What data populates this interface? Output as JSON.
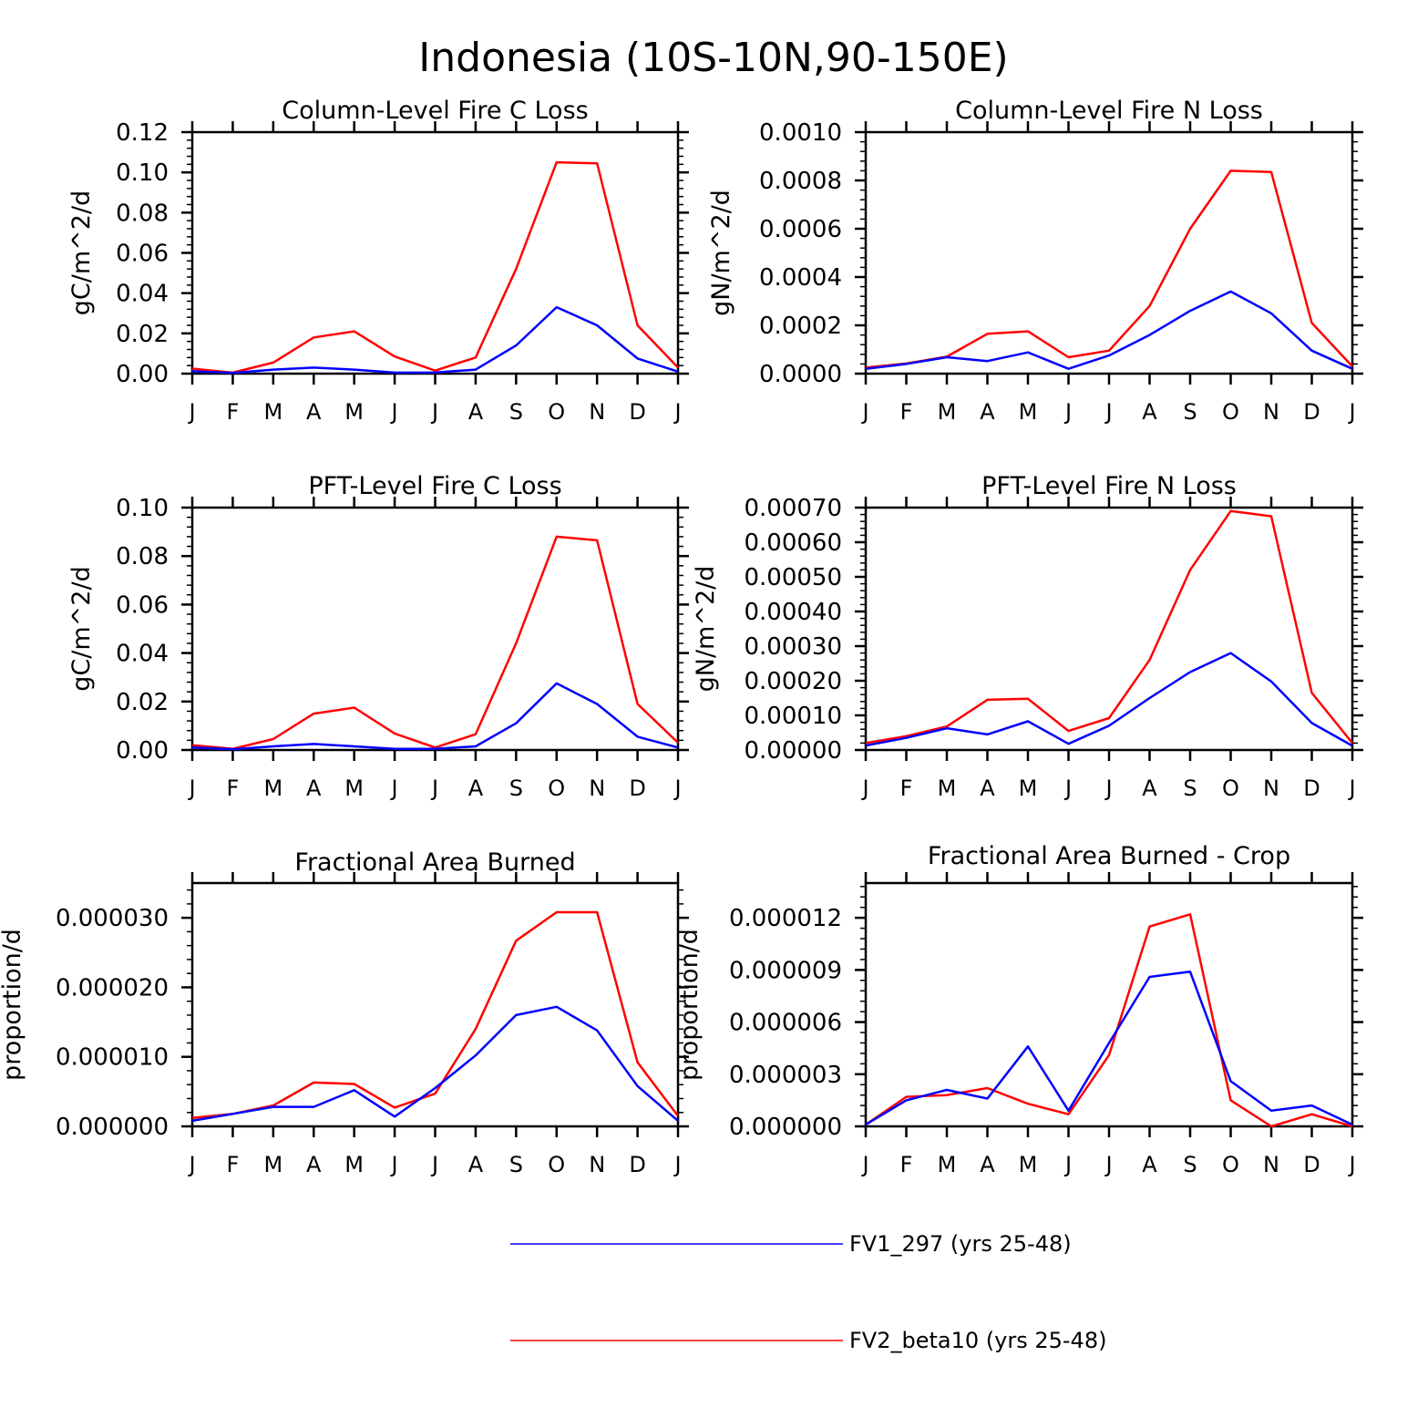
{
  "title": "Indonesia (10S-10N,90-150E)",
  "chart_data": [
    {
      "type": "line",
      "title": "Column-Level Fire C Loss",
      "ylabel": "gC/m^2/d",
      "categories": [
        "J",
        "F",
        "M",
        "A",
        "M",
        "J",
        "J",
        "A",
        "S",
        "O",
        "N",
        "D",
        "J"
      ],
      "ylim": [
        0,
        0.12
      ],
      "yticks": [
        "0.00",
        "0.02",
        "0.04",
        "0.06",
        "0.08",
        "0.10",
        "0.12"
      ],
      "ytick_values": [
        0,
        0.02,
        0.04,
        0.06,
        0.08,
        0.1,
        0.12
      ],
      "series": [
        {
          "name": "FV1_297 (yrs 25-48)",
          "color": "#0000ff",
          "values": [
            0.0012,
            0.0003,
            0.002,
            0.003,
            0.002,
            0.0005,
            0.0006,
            0.002,
            0.014,
            0.033,
            0.024,
            0.0075,
            0.001
          ]
        },
        {
          "name": "FV2_beta10 (yrs 25-48)",
          "color": "#ff0000",
          "values": [
            0.0025,
            0.0005,
            0.0055,
            0.018,
            0.021,
            0.0085,
            0.0015,
            0.008,
            0.052,
            0.105,
            0.1045,
            0.024,
            0.003
          ]
        }
      ]
    },
    {
      "type": "line",
      "title": "Column-Level Fire N Loss",
      "ylabel": "gN/m^2/d",
      "categories": [
        "J",
        "F",
        "M",
        "A",
        "M",
        "J",
        "J",
        "A",
        "S",
        "O",
        "N",
        "D",
        "J"
      ],
      "ylim": [
        0,
        0.001
      ],
      "yticks": [
        "0.0000",
        "0.0002",
        "0.0004",
        "0.0006",
        "0.0008",
        "0.0010"
      ],
      "ytick_values": [
        0,
        0.0002,
        0.0004,
        0.0006,
        0.0008,
        0.001
      ],
      "series": [
        {
          "name": "FV1_297 (yrs 25-48)",
          "color": "#0000ff",
          "values": [
            2e-05,
            4e-05,
            6.8e-05,
            5.2e-05,
            8.8e-05,
            2e-05,
            7.5e-05,
            0.00016,
            0.00026,
            0.00034,
            0.00025,
            9.5e-05,
            2e-05
          ]
        },
        {
          "name": "FV2_beta10 (yrs 25-48)",
          "color": "#ff0000",
          "values": [
            2.5e-05,
            4.2e-05,
            7e-05,
            0.000165,
            0.000175,
            6.8e-05,
            9.5e-05,
            0.00028,
            0.0006,
            0.00084,
            0.000835,
            0.00021,
            3e-05
          ]
        }
      ]
    },
    {
      "type": "line",
      "title": "PFT-Level Fire C Loss",
      "ylabel": "gC/m^2/d",
      "categories": [
        "J",
        "F",
        "M",
        "A",
        "M",
        "J",
        "J",
        "A",
        "S",
        "O",
        "N",
        "D",
        "J"
      ],
      "ylim": [
        0,
        0.1
      ],
      "yticks": [
        "0.00",
        "0.02",
        "0.04",
        "0.06",
        "0.08",
        "0.10"
      ],
      "ytick_values": [
        0,
        0.02,
        0.04,
        0.06,
        0.08,
        0.1
      ],
      "series": [
        {
          "name": "FV1_297 (yrs 25-48)",
          "color": "#0000ff",
          "values": [
            0.001,
            0.0003,
            0.0015,
            0.0025,
            0.0015,
            0.0005,
            0.0005,
            0.0015,
            0.011,
            0.0275,
            0.019,
            0.0055,
            0.001
          ]
        },
        {
          "name": "FV2_beta10 (yrs 25-48)",
          "color": "#ff0000",
          "values": [
            0.002,
            0.0005,
            0.0045,
            0.015,
            0.0175,
            0.0068,
            0.001,
            0.0065,
            0.044,
            0.088,
            0.0865,
            0.019,
            0.003
          ]
        }
      ]
    },
    {
      "type": "line",
      "title": "PFT-Level Fire N Loss",
      "ylabel": "gN/m^2/d",
      "categories": [
        "J",
        "F",
        "M",
        "A",
        "M",
        "J",
        "J",
        "A",
        "S",
        "O",
        "N",
        "D",
        "J"
      ],
      "ylim": [
        0,
        0.0007
      ],
      "yticks": [
        "0.00000",
        "0.00010",
        "0.00020",
        "0.00030",
        "0.00040",
        "0.00050",
        "0.00060",
        "0.00070"
      ],
      "ytick_values": [
        0,
        0.0001,
        0.0002,
        0.0003,
        0.0004,
        0.0005,
        0.0006,
        0.0007
      ],
      "series": [
        {
          "name": "FV1_297 (yrs 25-48)",
          "color": "#0000ff",
          "values": [
            1.3e-05,
            3.5e-05,
            6.3e-05,
            4.5e-05,
            8.3e-05,
            1.8e-05,
            7e-05,
            0.00015,
            0.000225,
            0.00028,
            0.000198,
            7.8e-05,
            1.2e-05
          ]
        },
        {
          "name": "FV2_beta10 (yrs 25-48)",
          "color": "#ff0000",
          "values": [
            2e-05,
            4e-05,
            6.8e-05,
            0.000145,
            0.000148,
            5.5e-05,
            9.2e-05,
            0.00026,
            0.00052,
            0.00069,
            0.000675,
            0.000165,
            2e-05
          ]
        }
      ]
    },
    {
      "type": "line",
      "title": "Fractional Area Burned",
      "ylabel": "proportion/d",
      "categories": [
        "J",
        "F",
        "M",
        "A",
        "M",
        "J",
        "J",
        "A",
        "S",
        "O",
        "N",
        "D",
        "J"
      ],
      "ylim": [
        0,
        3.5e-05
      ],
      "yticks": [
        "0.000000",
        "0.000010",
        "0.000020",
        "0.000030"
      ],
      "ytick_values": [
        0,
        1e-05,
        2e-05,
        3e-05
      ],
      "series": [
        {
          "name": "FV1_297 (yrs 25-48)",
          "color": "#0000ff",
          "values": [
            8e-07,
            1.8e-06,
            2.8e-06,
            2.8e-06,
            5.2e-06,
            1.4e-06,
            5.5e-06,
            1.02e-05,
            1.6e-05,
            1.72e-05,
            1.38e-05,
            5.8e-06,
            8e-07
          ]
        },
        {
          "name": "FV2_beta10 (yrs 25-48)",
          "color": "#ff0000",
          "values": [
            1.2e-06,
            1.8e-06,
            3e-06,
            6.3e-06,
            6.1e-06,
            2.7e-06,
            4.7e-06,
            1.4e-05,
            2.67e-05,
            3.08e-05,
            3.08e-05,
            9.2e-06,
            1.5e-06
          ]
        }
      ]
    },
    {
      "type": "line",
      "title": "Fractional Area Burned - Crop",
      "ylabel": "proportion/d",
      "categories": [
        "J",
        "F",
        "M",
        "A",
        "M",
        "J",
        "J",
        "A",
        "S",
        "O",
        "N",
        "D",
        "J"
      ],
      "ylim": [
        0,
        1.4e-05
      ],
      "yticks": [
        "0.000000",
        "0.000003",
        "0.000006",
        "0.000009",
        "0.000012"
      ],
      "ytick_values": [
        0,
        3e-06,
        6e-06,
        9e-06,
        1.2e-05
      ],
      "series": [
        {
          "name": "FV1_297 (yrs 25-48)",
          "color": "#0000ff",
          "values": [
            1e-07,
            1.5e-06,
            2.1e-06,
            1.6e-06,
            4.6e-06,
            9e-07,
            4.8e-06,
            8.6e-06,
            8.9e-06,
            2.6e-06,
            9e-07,
            1.2e-06,
            1e-07
          ]
        },
        {
          "name": "FV2_beta10 (yrs 25-48)",
          "color": "#ff0000",
          "values": [
            1e-07,
            1.7e-06,
            1.8e-06,
            2.2e-06,
            1.3e-06,
            7e-07,
            4.1e-06,
            1.15e-05,
            1.22e-05,
            1.5e-06,
            0.0,
            7e-07,
            0.0
          ]
        }
      ]
    }
  ],
  "legend": [
    {
      "label": "FV1_297 (yrs 25-48)",
      "color": "#0000ff"
    },
    {
      "label": "FV2_beta10 (yrs 25-48)",
      "color": "#ff0000"
    }
  ]
}
